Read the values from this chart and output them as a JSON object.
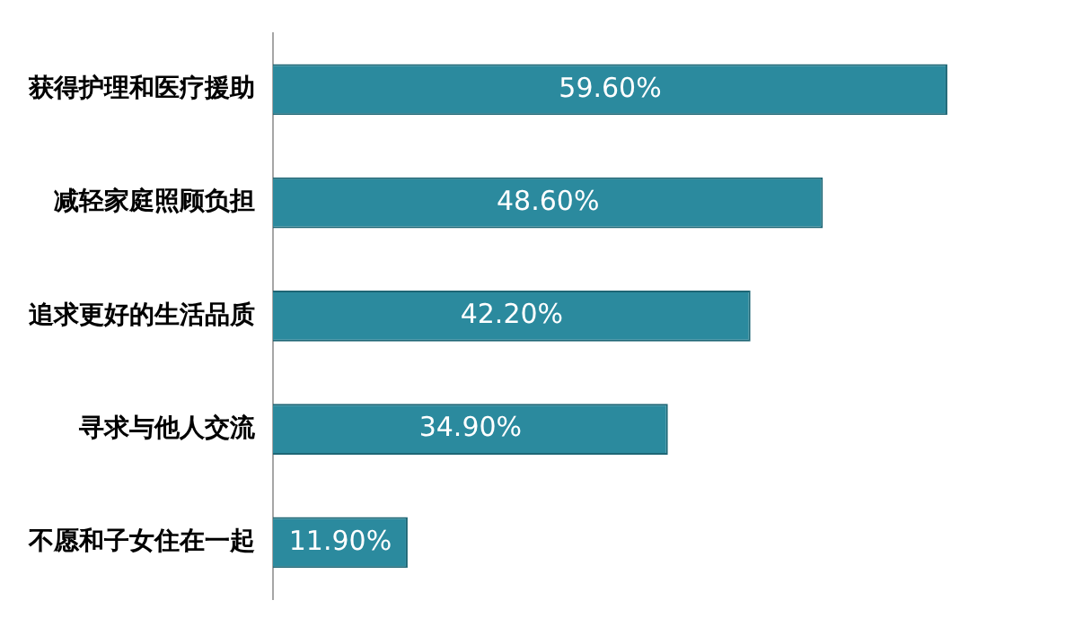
{
  "chart_data": {
    "type": "bar",
    "orientation": "horizontal",
    "categories": [
      "获得护理和医疗援助",
      "减轻家庭照顾负担",
      "追求更好的生活品质",
      "寻求与他人交流",
      "不愿和子女住在一起"
    ],
    "values": [
      59.6,
      48.6,
      42.2,
      34.9,
      11.9
    ],
    "value_labels": [
      "59.60%",
      "48.60%",
      "42.20%",
      "34.90%",
      "11.90%"
    ],
    "color": "#2b8a9e",
    "grid": false,
    "legend": false,
    "tick_labels": "y"
  }
}
